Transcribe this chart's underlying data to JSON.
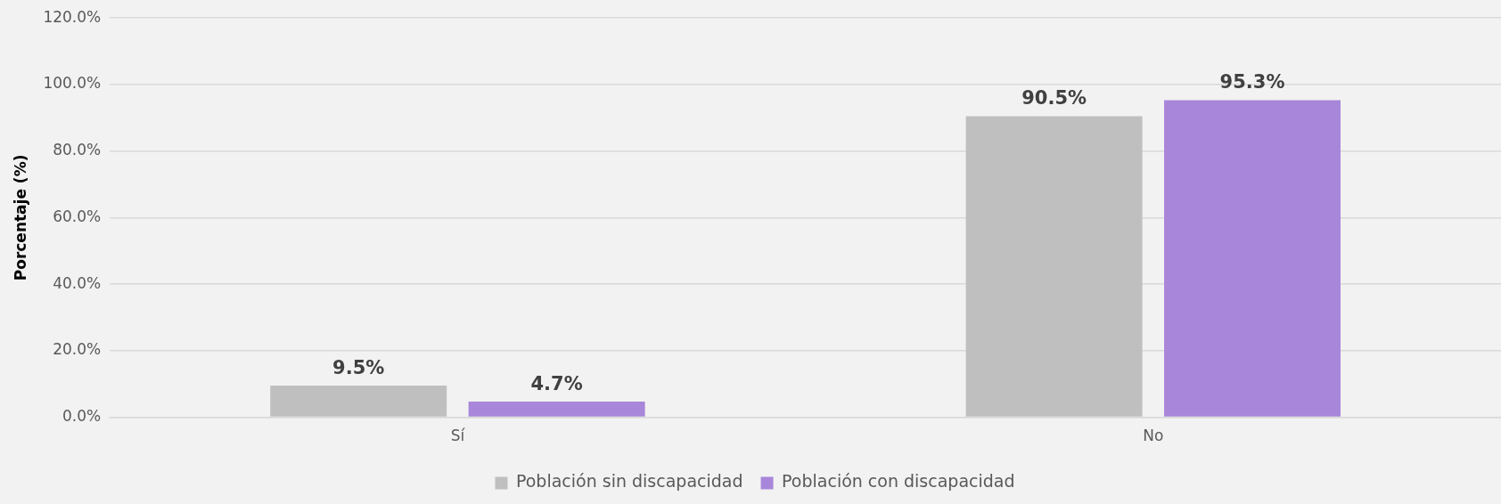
{
  "chart_data": {
    "type": "bar",
    "ylabel": "Porcentaje (%)",
    "categories": [
      "Sí",
      "No"
    ],
    "series": [
      {
        "name": "Población sin discapacidad",
        "color": "#bfbfbf",
        "values": [
          9.5,
          90.5
        ],
        "value_labels": [
          "9.5%",
          "90.5%"
        ]
      },
      {
        "name": "Población con discapacidad",
        "color": "#a886da",
        "values": [
          4.7,
          95.3
        ],
        "value_labels": [
          "4.7%",
          "95.3%"
        ]
      }
    ],
    "ylim": [
      0,
      120
    ],
    "yticks": [
      {
        "value": 0,
        "label": "0.0%"
      },
      {
        "value": 20,
        "label": "20.0%"
      },
      {
        "value": 40,
        "label": "40.0%"
      },
      {
        "value": 60,
        "label": "60.0%"
      },
      {
        "value": 80,
        "label": "80.0%"
      },
      {
        "value": 100,
        "label": "100.0%"
      },
      {
        "value": 120,
        "label": "120.0%"
      }
    ],
    "grid": "y",
    "legend": "bottom"
  }
}
